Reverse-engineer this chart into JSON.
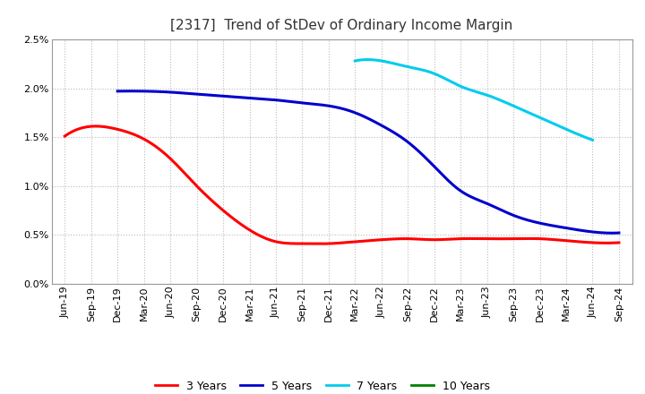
{
  "title": "[2317]  Trend of StDev of Ordinary Income Margin",
  "ylim": [
    0.0,
    0.025
  ],
  "yticks": [
    0.0,
    0.005,
    0.01,
    0.015,
    0.02,
    0.025
  ],
  "ytick_labels": [
    "0.0%",
    "0.5%",
    "1.0%",
    "1.5%",
    "2.0%",
    "2.5%"
  ],
  "x_labels": [
    "Jun-19",
    "Sep-19",
    "Dec-19",
    "Mar-20",
    "Jun-20",
    "Sep-20",
    "Dec-20",
    "Mar-21",
    "Jun-21",
    "Sep-21",
    "Dec-21",
    "Mar-22",
    "Jun-22",
    "Sep-22",
    "Dec-22",
    "Mar-23",
    "Jun-23",
    "Sep-23",
    "Dec-23",
    "Mar-24",
    "Jun-24",
    "Sep-24"
  ],
  "series": {
    "3 Years": {
      "color": "#ff0000",
      "values": [
        0.0151,
        0.0161,
        0.0158,
        0.0148,
        0.0128,
        0.01,
        0.0075,
        0.0055,
        0.0043,
        0.0041,
        0.0041,
        0.0043,
        0.0045,
        0.0046,
        0.0045,
        0.0046,
        0.0046,
        0.0046,
        0.0046,
        0.0044,
        0.0042,
        0.0042
      ]
    },
    "5 Years": {
      "color": "#0000cc",
      "values": [
        null,
        null,
        0.0197,
        0.0197,
        0.0196,
        0.0194,
        0.0192,
        0.019,
        0.0188,
        0.0185,
        0.0182,
        0.0175,
        0.0162,
        0.0145,
        0.012,
        0.0095,
        0.0082,
        0.007,
        0.0062,
        0.0057,
        0.0053,
        0.0052
      ]
    },
    "7 Years": {
      "color": "#00ccee",
      "values": [
        null,
        null,
        null,
        null,
        null,
        null,
        null,
        null,
        null,
        null,
        null,
        0.0228,
        0.0228,
        0.0222,
        0.0215,
        0.0202,
        0.0193,
        0.0182,
        0.017,
        0.0158,
        0.0147,
        null
      ]
    },
    "10 Years": {
      "color": "#008000",
      "values": [
        null,
        null,
        null,
        null,
        null,
        null,
        null,
        null,
        null,
        null,
        null,
        null,
        null,
        null,
        null,
        null,
        null,
        null,
        null,
        null,
        null,
        null
      ]
    }
  },
  "legend_labels": [
    "3 Years",
    "5 Years",
    "7 Years",
    "10 Years"
  ],
  "legend_colors": [
    "#ff0000",
    "#0000cc",
    "#00ccee",
    "#008000"
  ],
  "background_color": "#ffffff",
  "grid_color": "#bbbbbb",
  "title_fontsize": 11,
  "tick_fontsize": 8,
  "legend_fontsize": 9,
  "linewidth": 2.2
}
